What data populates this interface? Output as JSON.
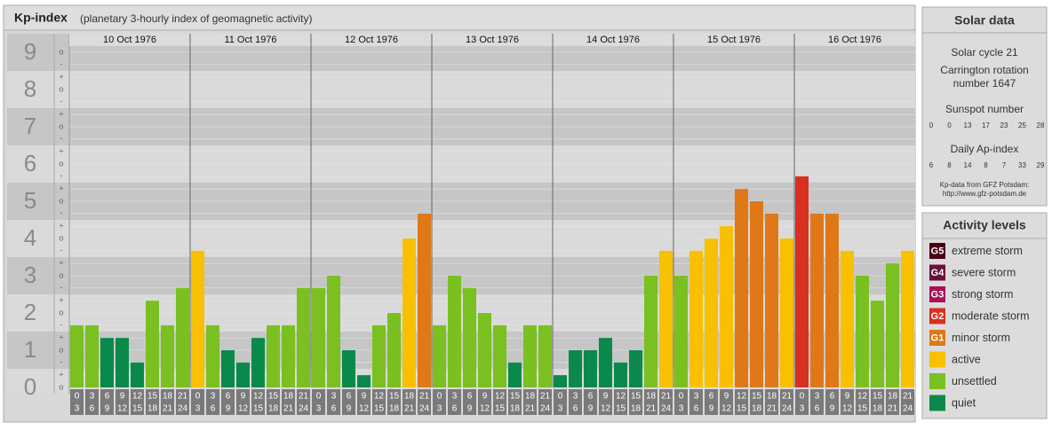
{
  "chart_data": {
    "type": "bar",
    "title": "Kp-index",
    "subtitle": "(planetary 3-hourly index of geomagnetic activity)",
    "ylim": [
      0,
      9.5
    ],
    "yticks": [
      0,
      1,
      2,
      3,
      4,
      5,
      6,
      7,
      8,
      9
    ],
    "minor_yticks": [
      {
        "value": 0,
        "label": "o"
      },
      {
        "value": 0.33,
        "label": "+"
      },
      {
        "value": 0.67,
        "label": "-"
      },
      {
        "value": 1,
        "label": "o"
      },
      {
        "value": 1.33,
        "label": "+"
      },
      {
        "value": 1.67,
        "label": "-"
      },
      {
        "value": 2,
        "label": "o"
      },
      {
        "value": 2.33,
        "label": "+"
      },
      {
        "value": 2.67,
        "label": "-"
      },
      {
        "value": 3,
        "label": "o"
      },
      {
        "value": 3.33,
        "label": "+"
      },
      {
        "value": 3.67,
        "label": "-"
      },
      {
        "value": 4,
        "label": "o"
      },
      {
        "value": 4.33,
        "label": "+"
      },
      {
        "value": 4.67,
        "label": "-"
      },
      {
        "value": 5,
        "label": "o"
      },
      {
        "value": 5.33,
        "label": "+"
      },
      {
        "value": 5.67,
        "label": "-"
      },
      {
        "value": 6,
        "label": "o"
      },
      {
        "value": 6.33,
        "label": "+"
      },
      {
        "value": 6.67,
        "label": "-"
      },
      {
        "value": 7,
        "label": "o"
      },
      {
        "value": 7.33,
        "label": "+"
      },
      {
        "value": 7.67,
        "label": "-"
      },
      {
        "value": 8,
        "label": "o"
      },
      {
        "value": 8.33,
        "label": "+"
      },
      {
        "value": 8.67,
        "label": "-"
      },
      {
        "value": 9,
        "label": "o"
      }
    ],
    "hours_start": [
      "0",
      "3",
      "6",
      "9",
      "12",
      "15",
      "18",
      "21"
    ],
    "hours_end": [
      "3",
      "6",
      "9",
      "12",
      "15",
      "18",
      "21",
      "24"
    ],
    "days": [
      {
        "date": "10 Oct 1976",
        "values": [
          1.67,
          1.67,
          1.33,
          1.33,
          0.67,
          2.33,
          1.67,
          2.67
        ],
        "colors": [
          "#7ac020",
          "#7ac020",
          "#0a8a4a",
          "#0a8a4a",
          "#0a8a4a",
          "#7ac020",
          "#7ac020",
          "#7ac020"
        ]
      },
      {
        "date": "11 Oct 1976",
        "values": [
          3.67,
          1.67,
          1,
          0.67,
          1.33,
          1.67,
          1.67,
          2.67
        ],
        "colors": [
          "#f8c000",
          "#7ac020",
          "#0a8a4a",
          "#0a8a4a",
          "#0a8a4a",
          "#7ac020",
          "#7ac020",
          "#7ac020"
        ]
      },
      {
        "date": "12 Oct 1976",
        "values": [
          2.67,
          3,
          1,
          0.33,
          1.67,
          2,
          4,
          4.67
        ],
        "colors": [
          "#7ac020",
          "#7ac020",
          "#0a8a4a",
          "#0a8a4a",
          "#7ac020",
          "#7ac020",
          "#f8c000",
          "#e07818"
        ]
      },
      {
        "date": "13 Oct 1976",
        "values": [
          1.67,
          3,
          2.67,
          2,
          1.67,
          0.67,
          1.67,
          1.67
        ],
        "colors": [
          "#7ac020",
          "#7ac020",
          "#7ac020",
          "#7ac020",
          "#7ac020",
          "#0a8a4a",
          "#7ac020",
          "#7ac020"
        ]
      },
      {
        "date": "14 Oct 1976",
        "values": [
          0.33,
          1,
          1,
          1.33,
          0.67,
          1,
          3,
          3.67
        ],
        "colors": [
          "#0a8a4a",
          "#0a8a4a",
          "#0a8a4a",
          "#0a8a4a",
          "#0a8a4a",
          "#0a8a4a",
          "#7ac020",
          "#f8c000"
        ]
      },
      {
        "date": "15 Oct 1976",
        "values": [
          3,
          3.67,
          4,
          4.33,
          5.33,
          5,
          4.67,
          4
        ],
        "colors": [
          "#7ac020",
          "#f8c000",
          "#f8c000",
          "#f8c000",
          "#e07818",
          "#e07818",
          "#e07818",
          "#f8c000"
        ]
      },
      {
        "date": "16 Oct 1976",
        "values": [
          5.67,
          4.67,
          4.67,
          3.67,
          3,
          2.33,
          3.33,
          3.67
        ],
        "colors": [
          "#d83020",
          "#e07818",
          "#e07818",
          "#f8c000",
          "#7ac020",
          "#7ac020",
          "#7ac020",
          "#f8c000"
        ]
      }
    ]
  },
  "solar_data": {
    "title": "Solar data",
    "cycle": "Solar cycle 21",
    "carrington": "Carrington rotation number 1647",
    "sunspot_title": "Sunspot number",
    "sunspot": [
      "0",
      "0",
      "13",
      "17",
      "23",
      "25",
      "28"
    ],
    "ap_title": "Daily Ap-index",
    "ap": [
      "6",
      "8",
      "14",
      "8",
      "7",
      "33",
      "29"
    ],
    "source": "Kp-data from GFZ Potsdam:",
    "url": "http://www.gfz-potsdam.de"
  },
  "legend": {
    "title": "Activity levels",
    "items": [
      {
        "code": "G5",
        "label": "extreme storm",
        "color": "#4a0018"
      },
      {
        "code": "G4",
        "label": "severe storm",
        "color": "#6a1040"
      },
      {
        "code": "G3",
        "label": "strong storm",
        "color": "#a8105a"
      },
      {
        "code": "G2",
        "label": "moderate storm",
        "color": "#d83020"
      },
      {
        "code": "G1",
        "label": "minor storm",
        "color": "#e07818"
      },
      {
        "code": null,
        "label": "active",
        "color": "#f8c000"
      },
      {
        "code": null,
        "label": "unsettled",
        "color": "#7ac020"
      },
      {
        "code": null,
        "label": "quiet",
        "color": "#0a8a4a"
      }
    ]
  }
}
